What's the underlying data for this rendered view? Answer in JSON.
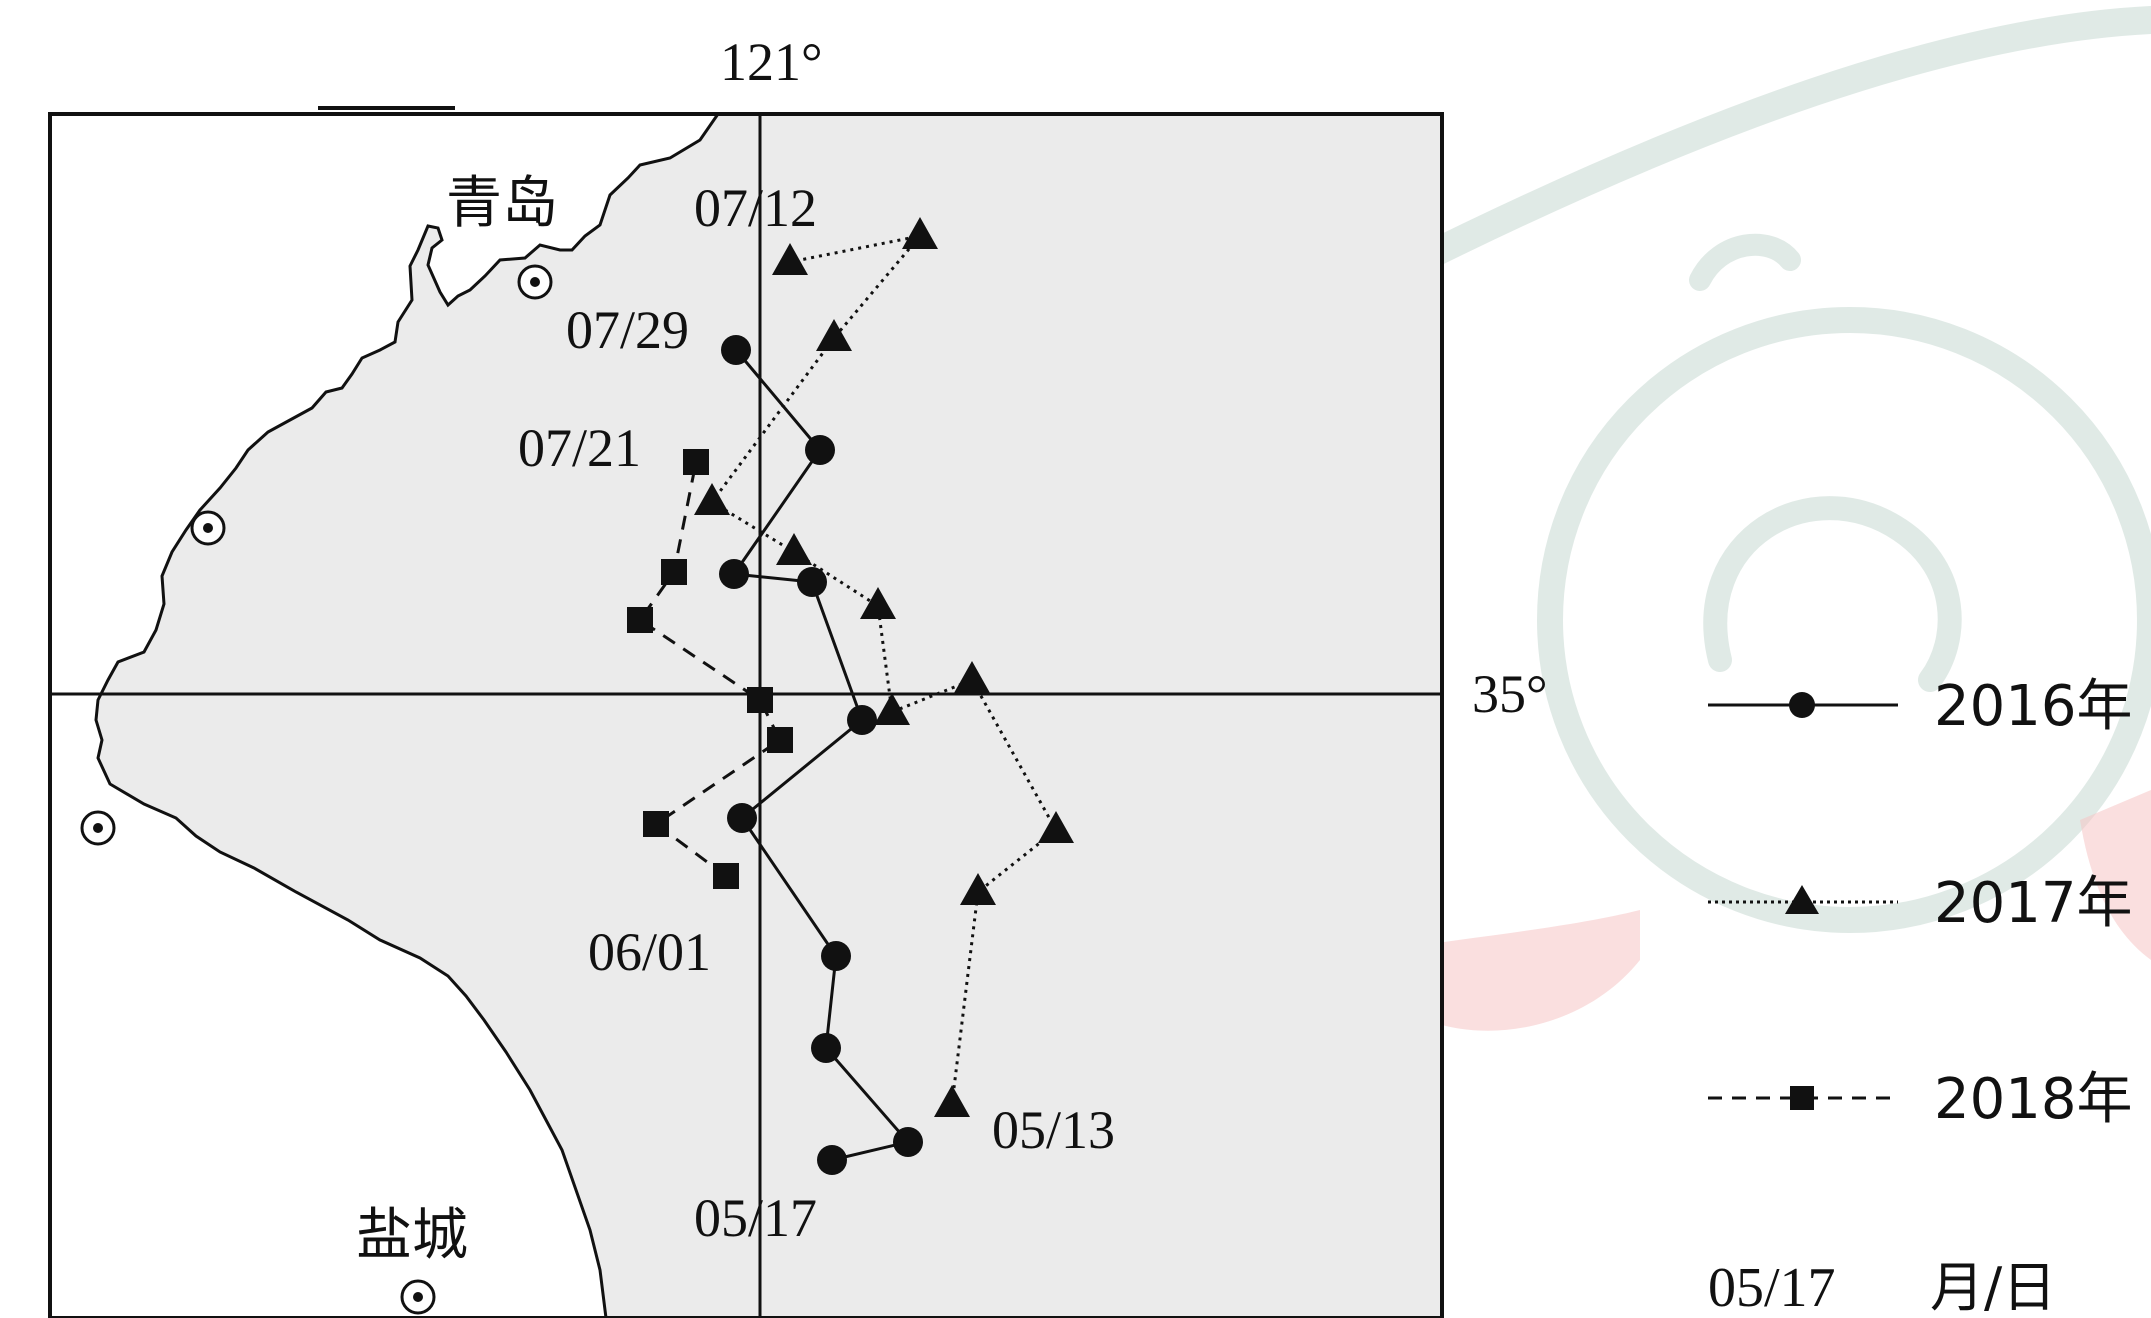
{
  "map": {
    "longitude_label": "121°",
    "latitude_label": "35°",
    "cities": [
      {
        "name": "青岛"
      },
      {
        "name": "盐城"
      }
    ]
  },
  "colors": {
    "sea": "#ebebeb",
    "land": "#ffffff",
    "ink": "#111111",
    "watermark_green": "#c7d9d2",
    "watermark_pink": "#f5c4c4"
  },
  "legend": {
    "items": [
      {
        "label": "2016年",
        "line": "solid",
        "marker": "circle"
      },
      {
        "label": "2017年",
        "line": "dotted",
        "marker": "triangle"
      },
      {
        "label": "2018年",
        "line": "dashed",
        "marker": "square"
      }
    ],
    "date_example": "05/17",
    "date_format": "月/日"
  },
  "tracks": [
    {
      "year": "2016年",
      "labels": [
        {
          "text": "05/17",
          "point": 0
        },
        {
          "text": "06/01",
          "point": 4
        },
        {
          "text": "07/29",
          "point": 11
        }
      ]
    },
    {
      "year": "2017年",
      "labels": [
        {
          "text": "05/13",
          "point": 0
        },
        {
          "text": "07/12",
          "point": 11
        }
      ]
    },
    {
      "year": "2018年",
      "labels": [
        {
          "text": "07/21",
          "point": 6
        }
      ]
    }
  ]
}
